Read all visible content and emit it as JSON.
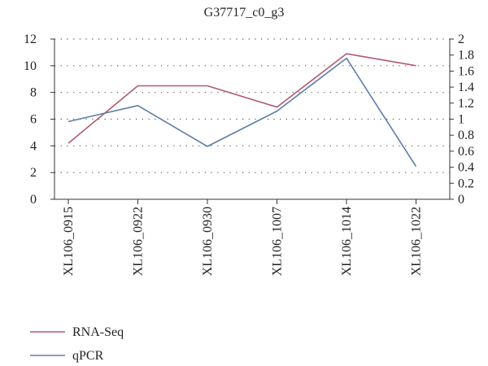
{
  "chart_data": {
    "type": "line",
    "title": "G37717_c0_g3",
    "categories": [
      "XL106_0915",
      "XL106_0922",
      "XL106_0930",
      "XL106_1007",
      "XL106_1014",
      "XL106_1022"
    ],
    "series": [
      {
        "name": "RNA-Seq",
        "axis": "left",
        "color": "#b05a6e",
        "values": [
          4.2,
          8.5,
          8.5,
          6.9,
          10.9,
          10.0
        ]
      },
      {
        "name": "qPCR",
        "axis": "right",
        "color": "#5d7ea8",
        "values": [
          0.97,
          1.17,
          0.66,
          1.1,
          1.76,
          0.41
        ]
      }
    ],
    "y_left": {
      "min": 0,
      "max": 12,
      "ticks": [
        "0",
        "2",
        "4",
        "6",
        "8",
        "10",
        "12"
      ]
    },
    "y_right": {
      "min": 0,
      "max": 2,
      "ticks": [
        "0",
        "0.2",
        "0.4",
        "0.6",
        "0.8",
        "1",
        "1.2",
        "1.4",
        "1.6",
        "1.8",
        "2"
      ]
    },
    "grid": "dotted-horizontal",
    "legend_position": "bottom-left"
  }
}
